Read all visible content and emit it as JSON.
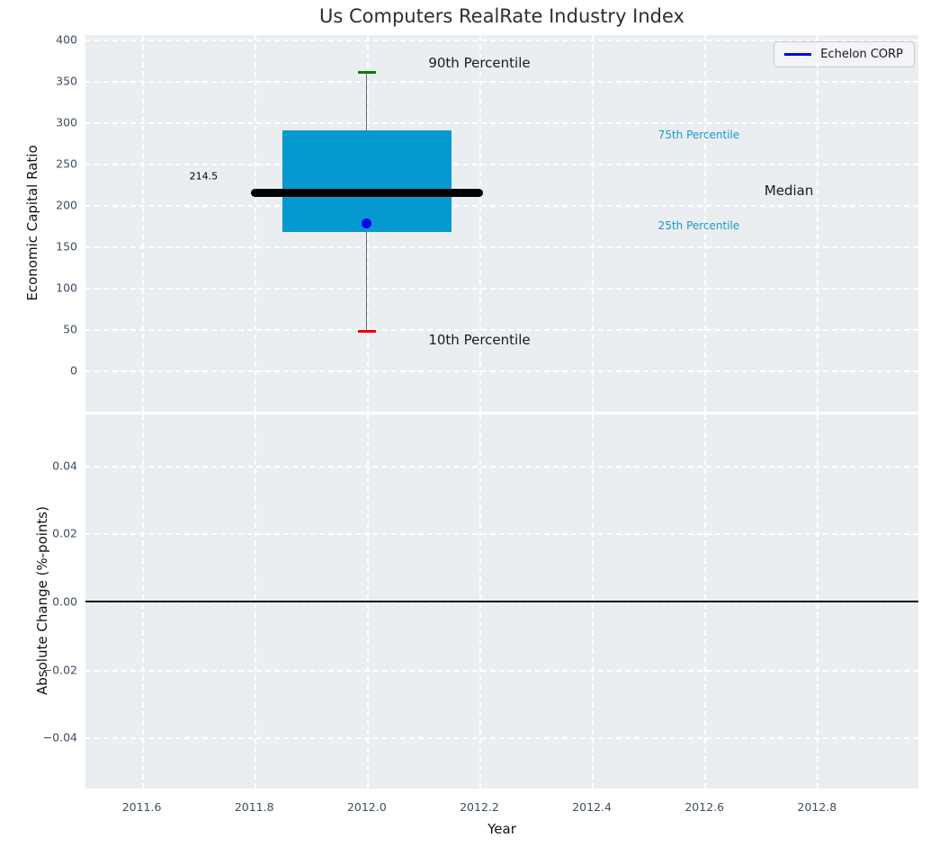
{
  "title": "Us Computers RealRate Industry Index",
  "legend": {
    "label": "Echelon CORP",
    "line_color": "#0000ee"
  },
  "x_axis": {
    "label": "Year",
    "xlim": [
      2011.5,
      2012.98
    ],
    "ticks": [
      2011.6,
      2011.8,
      2012.0,
      2012.2,
      2012.4,
      2012.6,
      2012.8
    ],
    "tick_labels": [
      "2011.6",
      "2011.8",
      "2012.0",
      "2012.2",
      "2012.4",
      "2012.6",
      "2012.8"
    ]
  },
  "chart_data": [
    {
      "type": "box",
      "subplot": "top",
      "title": "Us Computers RealRate Industry Index",
      "ylabel": "Economic Capital Ratio",
      "ylim": [
        -50,
        405
      ],
      "yticks": [
        0,
        50,
        100,
        150,
        200,
        250,
        300,
        350,
        400
      ],
      "ytick_labels": [
        "0",
        "50",
        "100",
        "150",
        "200",
        "250",
        "300",
        "350",
        "400"
      ],
      "grid": true,
      "x_center": 2012.0,
      "box": {
        "p10": 47,
        "p25": 167,
        "median": 214.5,
        "p75": 290,
        "p90": 360
      },
      "box_x_span": [
        2011.85,
        2012.15
      ],
      "median_x_span": [
        2011.8,
        2012.2
      ],
      "company_point": {
        "name": "Echelon CORP",
        "x": 2012.0,
        "y": 178
      },
      "annotations": [
        {
          "name": "label-90th-percentile",
          "text": "90th Percentile",
          "x": 2012.2,
          "y": 371,
          "color": "#1a1a1a",
          "size": 15
        },
        {
          "name": "label-10th-percentile",
          "text": "10th Percentile",
          "x": 2012.2,
          "y": 37,
          "color": "#1a1a1a",
          "size": 15
        },
        {
          "name": "label-75th-percentile",
          "text": "75th Percentile",
          "x": 2012.59,
          "y": 284,
          "color": "#1899ce",
          "size": 12
        },
        {
          "name": "label-25th-percentile",
          "text": "25th Percentile",
          "x": 2012.59,
          "y": 175,
          "color": "#1899ce",
          "size": 12
        },
        {
          "name": "label-median",
          "text": "Median",
          "x": 2012.75,
          "y": 217,
          "color": "#1a1a1a",
          "size": 15
        },
        {
          "name": "label-median-value",
          "text": "214.5",
          "x": 2011.71,
          "y": 235,
          "color": "#000000",
          "size": 11
        }
      ],
      "colors": {
        "box_fill": "#0699cf",
        "whisker": "#666666",
        "cap_high": "#008000",
        "cap_low": "#ee0000",
        "median_line": "#000000",
        "company_point": "#0000ee"
      },
      "legend_position": "upper right"
    },
    {
      "type": "line",
      "subplot": "bottom",
      "ylabel": "Absolute Change (%-points)",
      "ylim": [
        -0.055,
        0.055
      ],
      "yticks": [
        0.04,
        0.02,
        0.0,
        -0.02,
        -0.04
      ],
      "ytick_labels": [
        "0.04",
        "0.02",
        "0.00",
        "−0.02",
        "−0.04"
      ],
      "grid": true,
      "zero_line": {
        "y": 0.0,
        "color": "#000000"
      },
      "series": []
    }
  ]
}
